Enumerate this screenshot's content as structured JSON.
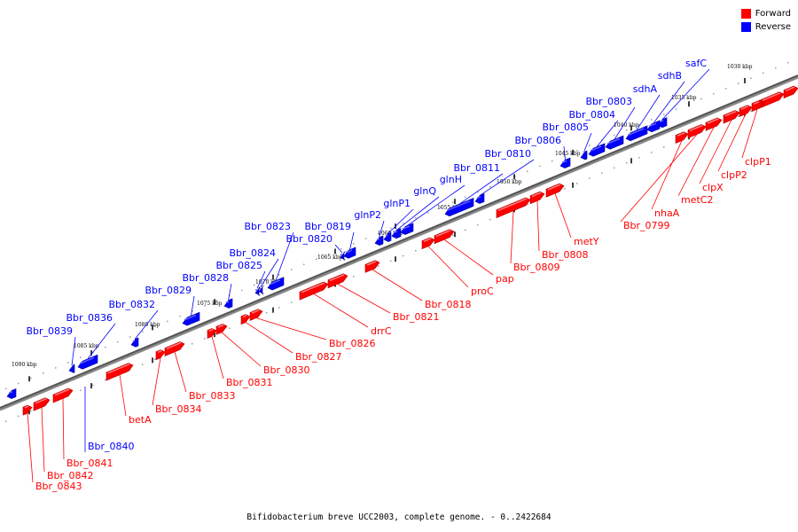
{
  "legend": {
    "forward_label": "Forward",
    "reverse_label": "Reverse",
    "forward_color": "#ff0000",
    "reverse_color": "#0000ff"
  },
  "caption": "Bifidobacterium breve UCC2003, complete genome. - 0..2422684",
  "kbp_labels": [
    "1030 kbp",
    "1035 kbp",
    "1040 kbp",
    "1045 kbp",
    "1050 kbp",
    "1055 kbp",
    "1060 kbp",
    "1065 kbp",
    "1070 kbp",
    "1075 kbp",
    "1080 kbp",
    "1085 kbp",
    "1090 kbp"
  ],
  "reverse_genes": [
    "safC",
    "sdhB",
    "sdhA",
    "Bbr_0803",
    "Bbr_0804",
    "Bbr_0805",
    "Bbr_0806",
    "Bbr_0810",
    "Bbr_0811",
    "glnH",
    "glnQ",
    "glnP1",
    "glnP2",
    "Bbr_0819",
    "Bbr_0820",
    "Bbr_0823",
    "Bbr_0824",
    "Bbr_0825",
    "Bbr_0828",
    "Bbr_0829",
    "Bbr_0832",
    "Bbr_0836",
    "Bbr_0839",
    "Bbr_0840"
  ],
  "forward_genes": [
    "clpP1",
    "clpP2",
    "clpX",
    "metC2",
    "nhaA",
    "Bbr_0799",
    "metY",
    "Bbr_0808",
    "Bbr_0809",
    "pap",
    "proC",
    "Bbr_0818",
    "Bbr_0821",
    "drrC",
    "Bbr_0826",
    "Bbr_0827",
    "Bbr_0830",
    "Bbr_0831",
    "Bbr_0833",
    "Bbr_0834",
    "betA",
    "Bbr_0841",
    "Bbr_0842",
    "Bbr_0843"
  ]
}
